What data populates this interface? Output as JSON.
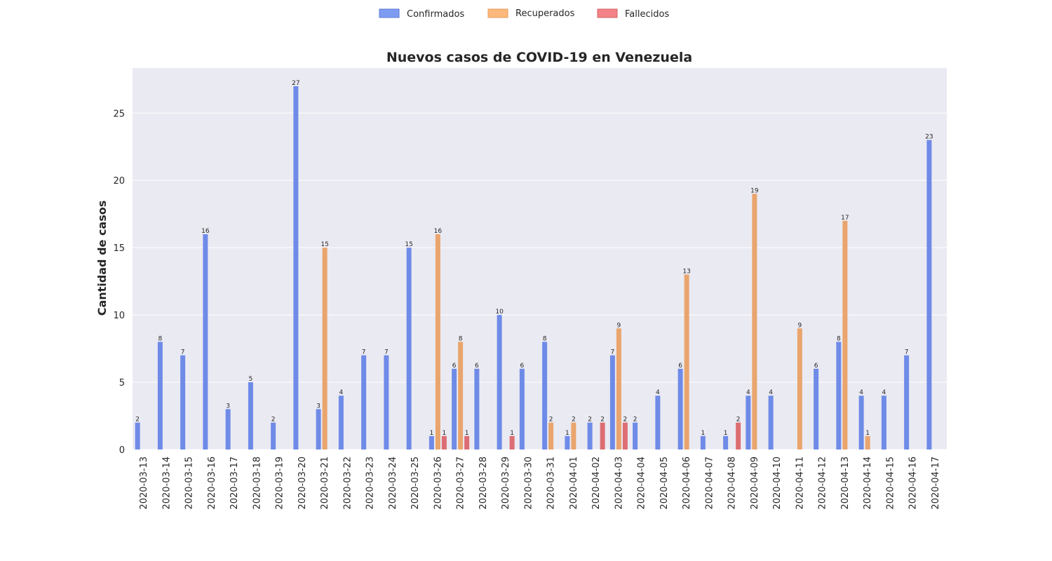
{
  "chart_data": {
    "type": "bar",
    "title": "Nuevos casos de COVID-19 en Venezuela",
    "xlabel": "",
    "ylabel": "Cantidad de casos",
    "ylim": [
      0,
      28.35
    ],
    "yticks": [
      0,
      5,
      10,
      15,
      20,
      25
    ],
    "grid": true,
    "legend_position": "top-center",
    "categories": [
      "2020-03-13",
      "2020-03-14",
      "2020-03-15",
      "2020-03-16",
      "2020-03-17",
      "2020-03-18",
      "2020-03-19",
      "2020-03-20",
      "2020-03-21",
      "2020-03-22",
      "2020-03-23",
      "2020-03-24",
      "2020-03-25",
      "2020-03-26",
      "2020-03-27",
      "2020-03-28",
      "2020-03-29",
      "2020-03-30",
      "2020-03-31",
      "2020-04-01",
      "2020-04-02",
      "2020-04-03",
      "2020-04-04",
      "2020-04-05",
      "2020-04-06",
      "2020-04-07",
      "2020-04-08",
      "2020-04-09",
      "2020-04-10",
      "2020-04-11",
      "2020-04-12",
      "2020-04-13",
      "2020-04-14",
      "2020-04-15",
      "2020-04-16",
      "2020-04-17"
    ],
    "series": [
      {
        "name": "Confirmados",
        "color": "#6f8be8",
        "values": [
          2,
          8,
          7,
          16,
          3,
          5,
          2,
          27,
          3,
          4,
          7,
          7,
          15,
          1,
          6,
          6,
          10,
          6,
          8,
          1,
          2,
          7,
          2,
          4,
          6,
          1,
          1,
          4,
          4,
          0,
          6,
          8,
          4,
          4,
          7,
          23
        ]
      },
      {
        "name": "Recuperados",
        "color": "#e9a56d",
        "values": [
          0,
          0,
          0,
          0,
          0,
          0,
          0,
          0,
          15,
          0,
          0,
          0,
          0,
          16,
          8,
          0,
          0,
          0,
          2,
          2,
          0,
          9,
          0,
          0,
          13,
          0,
          0,
          19,
          0,
          9,
          0,
          17,
          1,
          0,
          0,
          0
        ]
      },
      {
        "name": "Fallecidos",
        "color": "#dc6e73",
        "values": [
          0,
          0,
          0,
          0,
          0,
          0,
          0,
          0,
          0,
          0,
          0,
          0,
          0,
          1,
          1,
          0,
          1,
          0,
          0,
          0,
          2,
          2,
          0,
          0,
          0,
          0,
          2,
          0,
          0,
          0,
          0,
          0,
          0,
          0,
          0,
          0
        ]
      }
    ]
  }
}
